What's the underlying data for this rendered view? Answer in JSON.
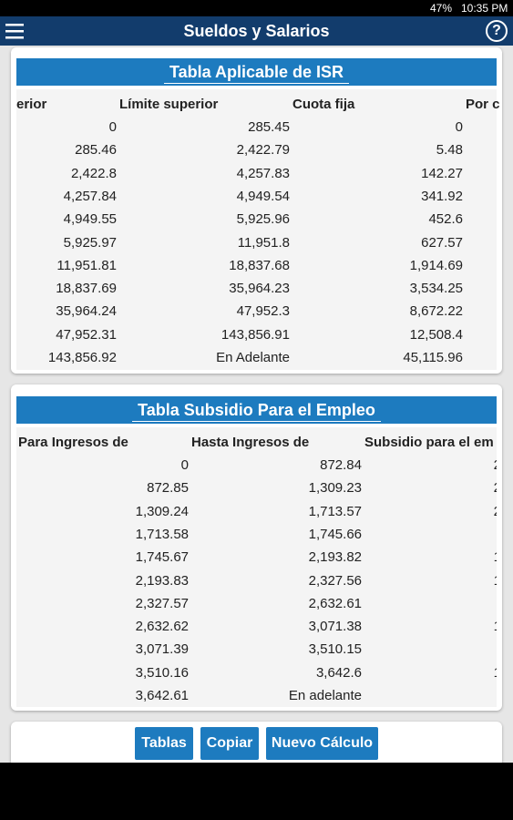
{
  "status_bar": {
    "time": "10:35 PM",
    "battery": "47%"
  },
  "app_bar": {
    "title": "Sueldos y Salarios",
    "help": "?"
  },
  "isr_table": {
    "title": "Tabla Aplicable de ISR",
    "headers": [
      "erior",
      "Límite superior",
      "Cuota fija",
      "Por c"
    ],
    "rows": [
      [
        "0",
        "285.45",
        "0"
      ],
      [
        "285.46",
        "2,422.79",
        "5.48"
      ],
      [
        "2,422.8",
        "4,257.83",
        "142.27"
      ],
      [
        "4,257.84",
        "4,949.54",
        "341.92"
      ],
      [
        "4,949.55",
        "5,925.96",
        "452.6"
      ],
      [
        "5,925.97",
        "11,951.8",
        "627.57"
      ],
      [
        "11,951.81",
        "18,837.68",
        "1,914.69"
      ],
      [
        "18,837.69",
        "35,964.23",
        "3,534.25"
      ],
      [
        "35,964.24",
        "47,952.3",
        "8,672.22"
      ],
      [
        "47,952.31",
        "143,856.91",
        "12,508.4"
      ],
      [
        "143,856.92",
        "En Adelante",
        "45,115.96"
      ]
    ]
  },
  "subsidio_table": {
    "title": "Tabla Subsidio Para el Empleo",
    "headers": [
      "Para Ingresos de",
      "Hasta Ingresos de",
      "Subsidio para el em"
    ],
    "rows": [
      [
        "0",
        "872.84",
        "2"
      ],
      [
        "872.85",
        "1,309.23",
        "2"
      ],
      [
        "1,309.24",
        "1,713.57",
        "2"
      ],
      [
        "1,713.58",
        "1,745.66",
        null
      ],
      [
        "1,745.67",
        "2,193.82",
        "1"
      ],
      [
        "2,193.83",
        "2,327.56",
        "1"
      ],
      [
        "2,327.57",
        "2,632.61",
        null
      ],
      [
        "2,632.62",
        "3,071.38",
        "1"
      ],
      [
        "3,071.39",
        "3,510.15",
        null
      ],
      [
        "3,510.16",
        "3,642.6",
        "1"
      ],
      [
        "3,642.61",
        "En adelante",
        null
      ]
    ]
  },
  "buttons": [
    "Tablas",
    "Copiar",
    "Nuevo Cálculo"
  ]
}
